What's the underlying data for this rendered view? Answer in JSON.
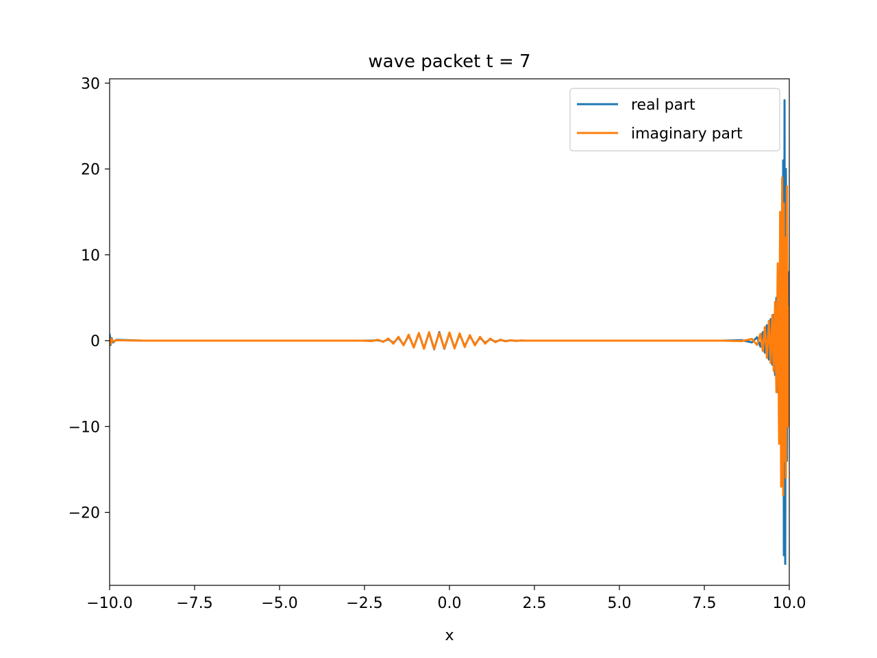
{
  "chart_data": {
    "type": "line",
    "title": "wave packet t = 7",
    "xlabel": "x",
    "ylabel": "",
    "xlim": [
      -10.0,
      10.0
    ],
    "ylim": [
      -28.5,
      30.5
    ],
    "xticks": [
      -10.0,
      -7.5,
      -5.0,
      -2.5,
      0.0,
      2.5,
      5.0,
      7.5,
      10.0
    ],
    "xtick_labels": [
      "−10.0",
      "−7.5",
      "−5.0",
      "−2.5",
      "0.0",
      "2.5",
      "5.0",
      "7.5",
      "10.0"
    ],
    "yticks": [
      -20,
      -10,
      0,
      10,
      20,
      30
    ],
    "ytick_labels": [
      "−20",
      "−10",
      "0",
      "10",
      "20",
      "30"
    ],
    "grid": false,
    "legend_position": "top-right",
    "series": [
      {
        "name": "real part",
        "color": "#1f77b4",
        "x": [
          -10.0,
          -9.97,
          -9.94,
          -9.9,
          -9.8,
          -9.0,
          -8.0,
          -6.0,
          -4.0,
          -3.0,
          -2.6,
          -2.3,
          -2.1,
          -1.95,
          -1.8,
          -1.65,
          -1.5,
          -1.35,
          -1.2,
          -1.05,
          -0.9,
          -0.75,
          -0.6,
          -0.45,
          -0.3,
          -0.15,
          0.0,
          0.15,
          0.3,
          0.45,
          0.6,
          0.75,
          0.9,
          1.05,
          1.2,
          1.35,
          1.5,
          1.65,
          1.8,
          1.95,
          2.1,
          2.3,
          2.6,
          3.0,
          4.0,
          5.0,
          6.0,
          7.0,
          8.0,
          8.6,
          8.9,
          9.05,
          9.15,
          9.22,
          9.28,
          9.34,
          9.4,
          9.45,
          9.5,
          9.54,
          9.58,
          9.62,
          9.66,
          9.7,
          9.73,
          9.76,
          9.79,
          9.82,
          9.84,
          9.86,
          9.88,
          9.9,
          9.93,
          9.96,
          10.0
        ],
        "values": [
          0.8,
          -0.5,
          0.3,
          -0.2,
          0.1,
          0.0,
          0.0,
          0.0,
          0.0,
          0.0,
          0.0,
          0.0,
          0.05,
          -0.1,
          0.15,
          -0.25,
          0.35,
          -0.5,
          0.6,
          -0.75,
          0.85,
          -0.9,
          0.95,
          -1.0,
          1.0,
          -0.95,
          0.9,
          -0.85,
          0.75,
          -0.65,
          0.55,
          -0.45,
          0.35,
          -0.25,
          0.18,
          -0.12,
          0.08,
          -0.05,
          0.03,
          -0.02,
          0.01,
          0.0,
          0.0,
          0.0,
          0.0,
          0.0,
          0.0,
          0.0,
          0.0,
          0.05,
          -0.2,
          0.4,
          -0.7,
          1.0,
          -1.4,
          1.8,
          -2.2,
          2.5,
          -2.8,
          3.0,
          -4.0,
          5.0,
          -6.0,
          7.0,
          -9.0,
          12.0,
          -16.0,
          21.0,
          -25.0,
          28.0,
          -26.0,
          20.0,
          -14.0,
          8.0,
          -3.0
        ]
      },
      {
        "name": "imaginary part",
        "color": "#ff7f0e",
        "x": [
          -10.0,
          -9.97,
          -9.94,
          -9.9,
          -9.8,
          -9.0,
          -8.0,
          -6.0,
          -4.0,
          -3.0,
          -2.6,
          -2.3,
          -2.1,
          -1.95,
          -1.8,
          -1.65,
          -1.5,
          -1.35,
          -1.2,
          -1.05,
          -0.9,
          -0.75,
          -0.6,
          -0.45,
          -0.3,
          -0.15,
          0.0,
          0.15,
          0.3,
          0.45,
          0.6,
          0.75,
          0.9,
          1.05,
          1.2,
          1.35,
          1.5,
          1.65,
          1.8,
          1.95,
          2.1,
          2.3,
          2.6,
          3.0,
          4.0,
          5.0,
          6.0,
          7.0,
          8.0,
          8.6,
          8.9,
          9.05,
          9.15,
          9.22,
          9.28,
          9.34,
          9.4,
          9.45,
          9.5,
          9.54,
          9.58,
          9.62,
          9.66,
          9.7,
          9.73,
          9.76,
          9.79,
          9.82,
          9.84,
          9.86,
          9.88,
          9.9,
          9.93,
          9.96,
          10.0
        ],
        "values": [
          0.3,
          -0.4,
          0.2,
          -0.1,
          0.05,
          0.0,
          0.0,
          0.0,
          0.0,
          0.0,
          0.0,
          -0.05,
          0.1,
          -0.15,
          0.25,
          -0.35,
          0.45,
          -0.55,
          0.7,
          -0.8,
          0.9,
          -0.95,
          1.0,
          -0.95,
          0.9,
          -0.9,
          0.95,
          -0.9,
          0.85,
          -0.75,
          0.65,
          -0.55,
          0.45,
          -0.35,
          0.25,
          -0.18,
          0.12,
          -0.08,
          0.05,
          -0.03,
          0.02,
          0.0,
          0.0,
          0.0,
          0.0,
          0.0,
          0.0,
          0.0,
          0.0,
          -0.05,
          0.2,
          -0.5,
          0.8,
          -1.2,
          1.6,
          -2.0,
          2.3,
          -2.6,
          3.0,
          -3.5,
          4.5,
          -6.0,
          9.0,
          -12.0,
          15.0,
          -17.0,
          19.0,
          -18.0,
          16.0,
          -14.0,
          12.0,
          -16.0,
          18.0,
          -10.0,
          4.0
        ]
      }
    ]
  }
}
